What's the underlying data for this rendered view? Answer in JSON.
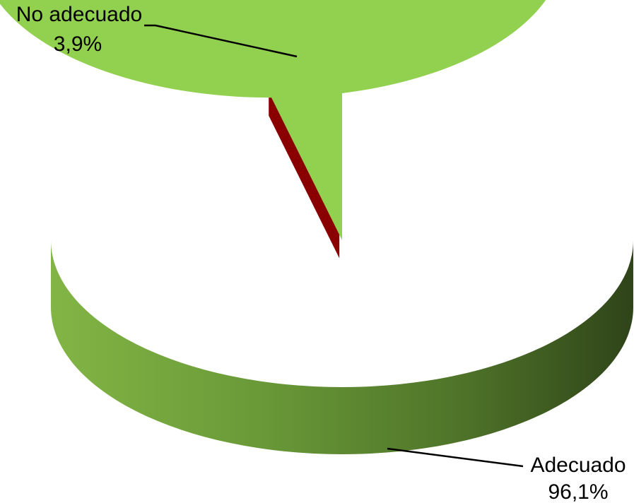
{
  "chart_data": {
    "type": "pie",
    "title": "",
    "slices": [
      {
        "name": "Adecuado",
        "value": 96.1,
        "value_label": "96,1%",
        "color": "#92d050"
      },
      {
        "name": "No adecuado",
        "value": 3.9,
        "value_label": "3,9%",
        "color": "#ff0000"
      }
    ],
    "style": "3d",
    "exploded_slice": "No adecuado",
    "legend": "none"
  }
}
